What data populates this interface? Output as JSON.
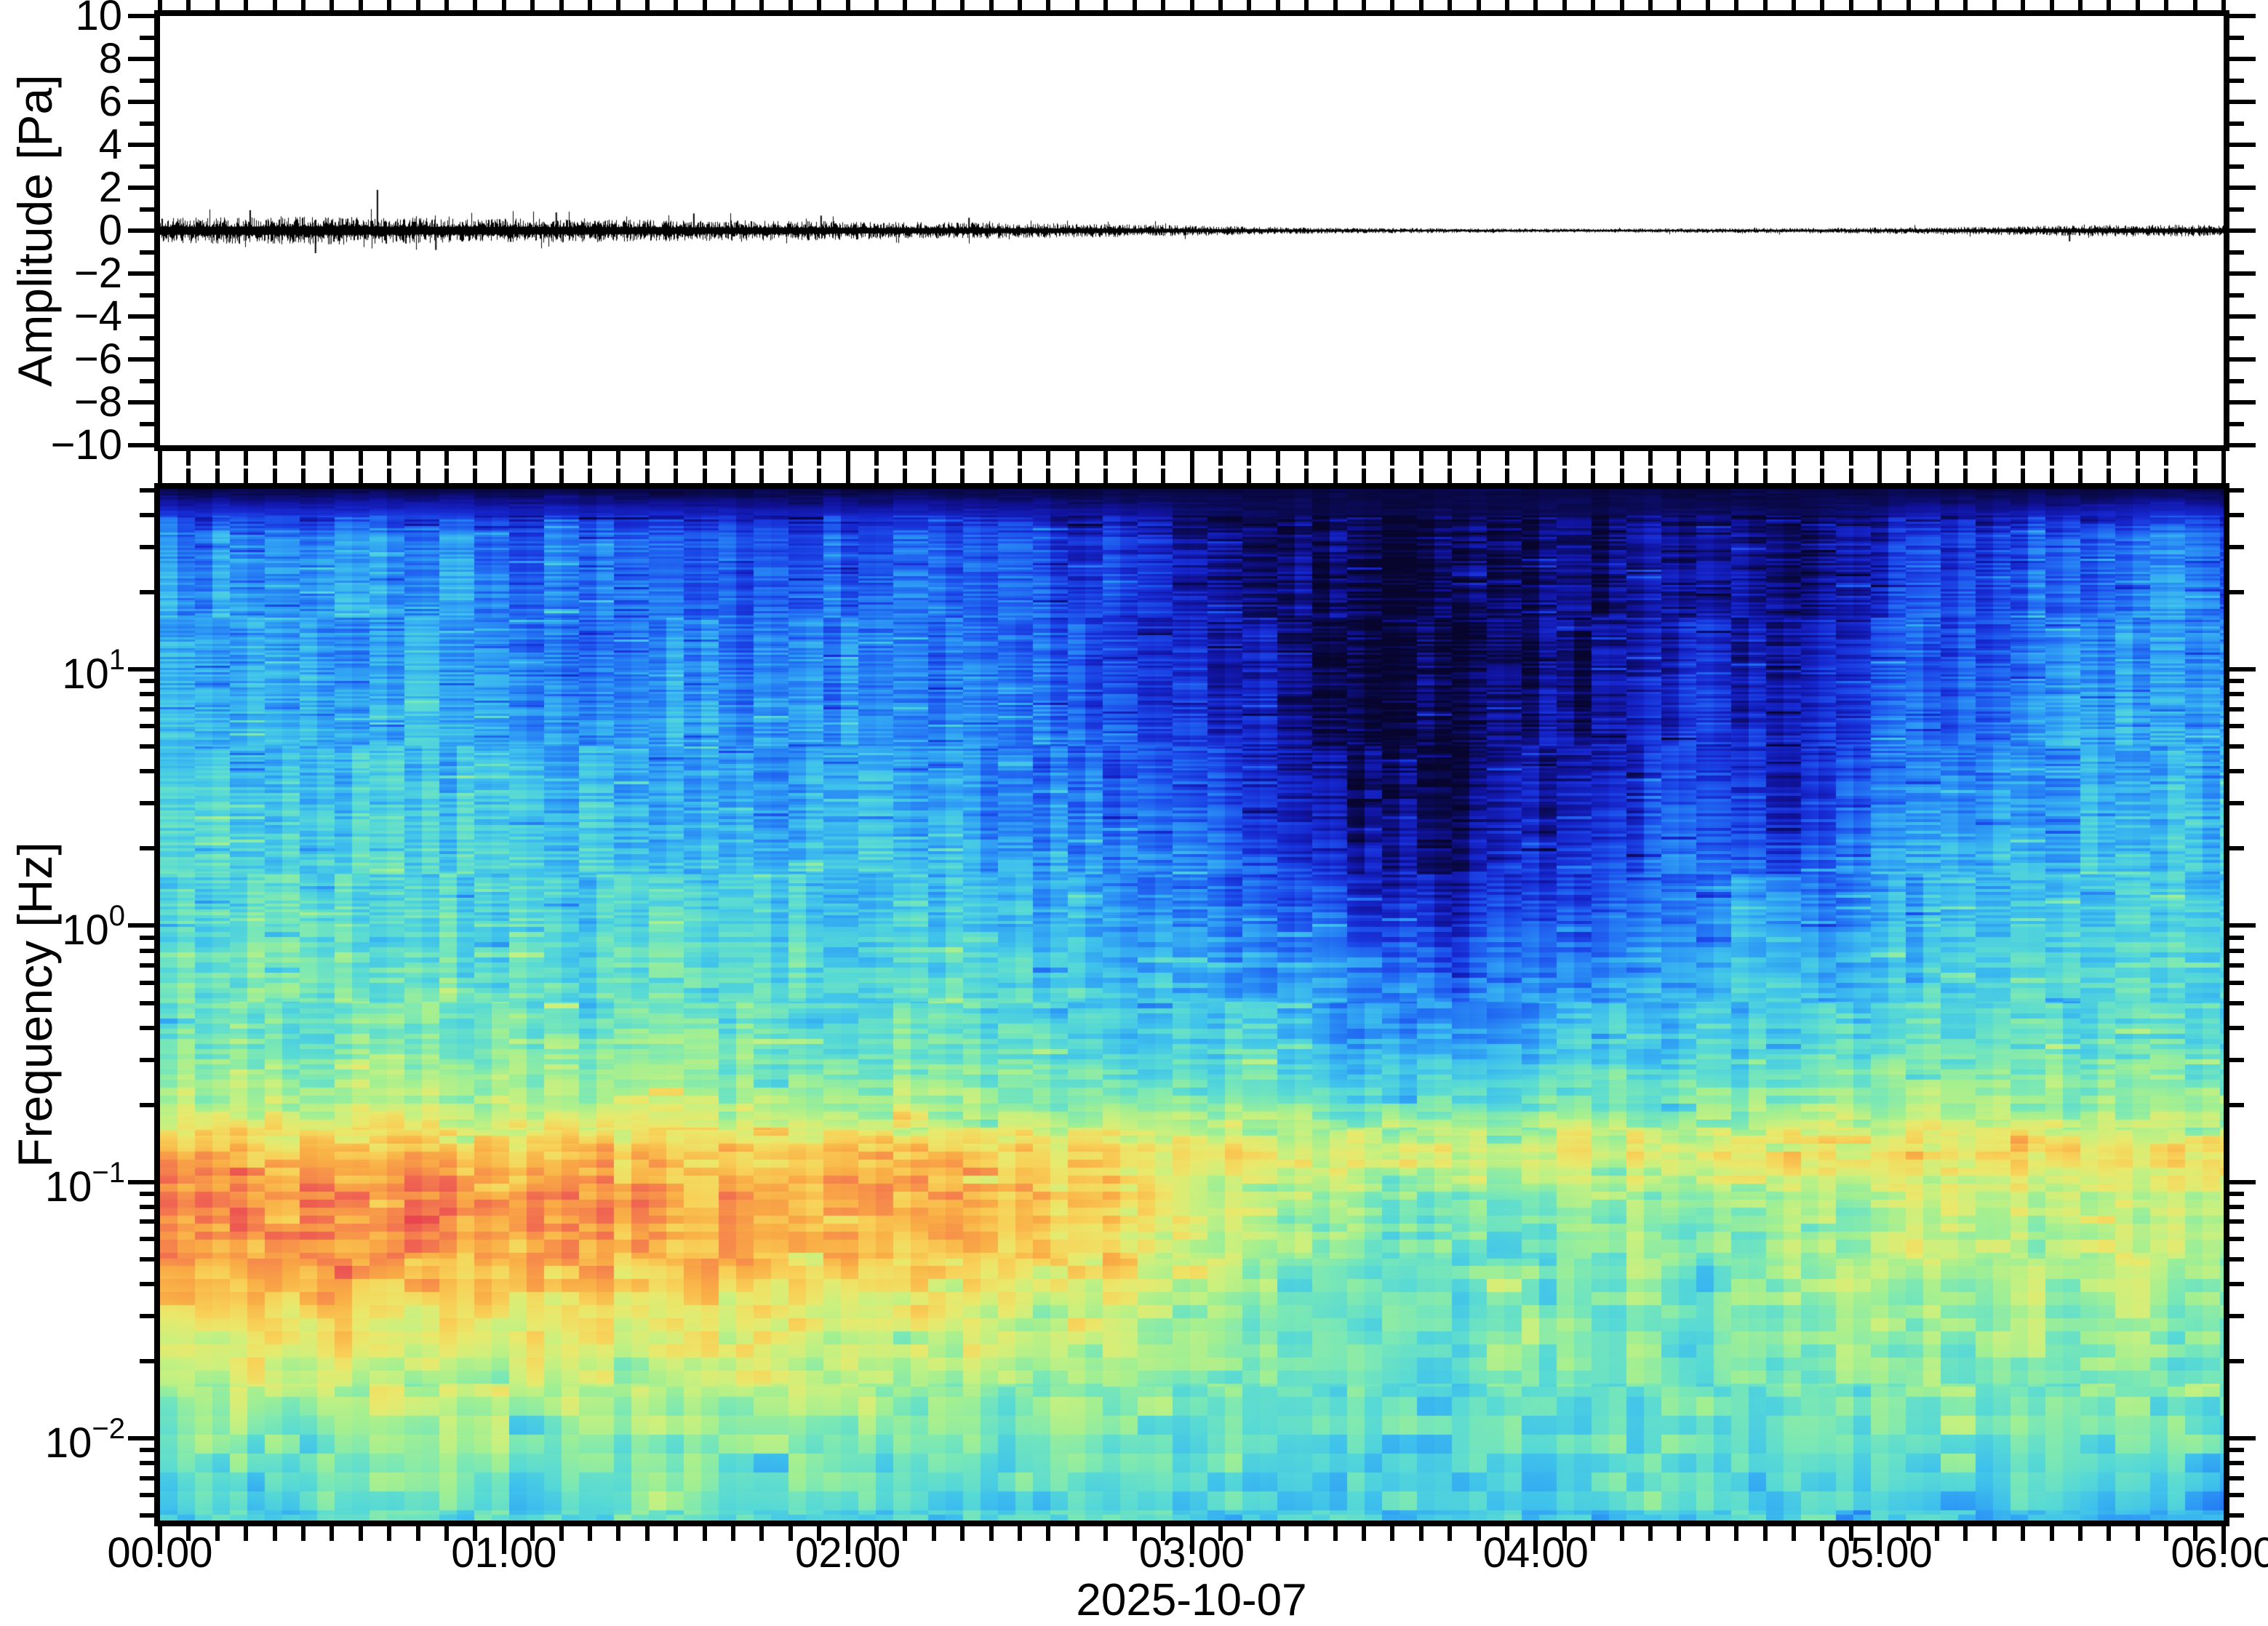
{
  "figure": {
    "date_label": "2025-10-07",
    "background": "#ffffff",
    "frame_color": "#000000",
    "trace_color": "#000000"
  },
  "waveform_panel": {
    "ylabel": "Amplitude [Pa]",
    "ylim": [
      -10,
      10
    ],
    "yticks": [
      {
        "v": 10,
        "label": "10"
      },
      {
        "v": 8,
        "label": "8"
      },
      {
        "v": 6,
        "label": "6"
      },
      {
        "v": 4,
        "label": "4"
      },
      {
        "v": 2,
        "label": "2"
      },
      {
        "v": 0,
        "label": "0"
      },
      {
        "v": -2,
        "label": "−2"
      },
      {
        "v": -4,
        "label": "−4"
      },
      {
        "v": -6,
        "label": "−6"
      },
      {
        "v": -8,
        "label": "−8"
      },
      {
        "v": -10,
        "label": "−10"
      }
    ]
  },
  "spectrogram_panel": {
    "ylabel": "Frequency [Hz]",
    "y_scale": "log",
    "log10_range": [
      -2.32,
      1.704
    ],
    "yticks": [
      {
        "logf": 1,
        "base": "10",
        "exp": "1"
      },
      {
        "logf": 0,
        "base": "10",
        "exp": "0"
      },
      {
        "logf": -1,
        "base": "10",
        "exp": "−1"
      },
      {
        "logf": -2,
        "base": "10",
        "exp": "−2"
      }
    ]
  },
  "time_axis": {
    "start": "00:00",
    "end": "06:00",
    "hours_span": 6,
    "minor_tick_minutes": 5,
    "labels": [
      {
        "hour": 0,
        "label": "00:00"
      },
      {
        "hour": 1,
        "label": "01:00"
      },
      {
        "hour": 2,
        "label": "02:00"
      },
      {
        "hour": 3,
        "label": "03:00"
      },
      {
        "hour": 4,
        "label": "04:00"
      },
      {
        "hour": 5,
        "label": "05:00"
      },
      {
        "hour": 6,
        "label": "06:00"
      }
    ]
  },
  "chart_data": [
    {
      "type": "line",
      "name": "infrasound-waveform",
      "ylabel": "Amplitude [Pa]",
      "xlabel": "2025-10-07",
      "ylim": [
        -10,
        10
      ],
      "x_hours": [
        0,
        0.25,
        0.5,
        0.75,
        1,
        1.25,
        1.5,
        1.75,
        2,
        2.25,
        2.5,
        2.75,
        3,
        3.25,
        3.5,
        3.75,
        4,
        4.25,
        4.5,
        4.75,
        5,
        5.25,
        5.5,
        5.75,
        6
      ],
      "envelope_pa": [
        0.5,
        0.52,
        0.55,
        0.5,
        0.48,
        0.45,
        0.42,
        0.4,
        0.36,
        0.33,
        0.3,
        0.26,
        0.2,
        0.14,
        0.11,
        0.09,
        0.08,
        0.08,
        0.09,
        0.1,
        0.12,
        0.15,
        0.2,
        0.24,
        0.22
      ],
      "spikes_pa": [
        {
          "t": 0.26,
          "a": 0.95
        },
        {
          "t": 0.45,
          "a": -1.05
        },
        {
          "t": 0.63,
          "a": 1.9
        },
        {
          "t": 0.8,
          "a": -0.9
        },
        {
          "t": 1.15,
          "a": 0.85
        },
        {
          "t": 1.55,
          "a": 0.8
        },
        {
          "t": 1.92,
          "a": 0.7
        },
        {
          "t": 2.35,
          "a": 0.6
        },
        {
          "t": 5.55,
          "a": -0.5
        }
      ]
    },
    {
      "type": "heatmap",
      "name": "spectrogram",
      "ylabel": "Frequency [Hz]",
      "y_scale": "log",
      "ylim_hz": [
        0.0048,
        50
      ],
      "xlim_hours": [
        0,
        6
      ],
      "x_hours": [
        0,
        0.25,
        0.5,
        0.75,
        1,
        1.25,
        1.5,
        1.75,
        2,
        2.25,
        2.5,
        2.75,
        3,
        3.25,
        3.5,
        3.75,
        4,
        4.25,
        4.5,
        4.75,
        5,
        5.25,
        5.5,
        5.75,
        6
      ],
      "log10_freq_rows": [
        1.7,
        1.52,
        1.34,
        1.1,
        0.85,
        0.6,
        0.35,
        0.1,
        -0.15,
        -0.45,
        -0.7,
        -0.88,
        -1.06,
        -1.3,
        -1.6,
        -1.95,
        -2.32
      ],
      "values_norm": [
        [
          0.03,
          0.03,
          0.03,
          0.03,
          0.03,
          0.03,
          0.03,
          0.03,
          0.03,
          0.03,
          0.03,
          0.03,
          0.03,
          0.03,
          0.03,
          0.03,
          0.03,
          0.03,
          0.03,
          0.03,
          0.03,
          0.03,
          0.03,
          0.03,
          0.03
        ],
        [
          0.3,
          0.32,
          0.3,
          0.33,
          0.28,
          0.25,
          0.27,
          0.24,
          0.26,
          0.24,
          0.22,
          0.18,
          0.12,
          0.09,
          0.05,
          0.04,
          0.06,
          0.07,
          0.12,
          0.08,
          0.16,
          0.2,
          0.24,
          0.28,
          0.26
        ],
        [
          0.32,
          0.34,
          0.32,
          0.35,
          0.3,
          0.27,
          0.29,
          0.26,
          0.28,
          0.26,
          0.24,
          0.2,
          0.14,
          0.1,
          0.04,
          0.04,
          0.06,
          0.08,
          0.14,
          0.09,
          0.18,
          0.22,
          0.26,
          0.3,
          0.28
        ],
        [
          0.35,
          0.37,
          0.34,
          0.37,
          0.32,
          0.3,
          0.31,
          0.28,
          0.3,
          0.28,
          0.26,
          0.22,
          0.16,
          0.11,
          0.04,
          0.04,
          0.07,
          0.09,
          0.16,
          0.1,
          0.2,
          0.25,
          0.28,
          0.33,
          0.3
        ],
        [
          0.38,
          0.4,
          0.37,
          0.39,
          0.35,
          0.33,
          0.34,
          0.31,
          0.32,
          0.3,
          0.28,
          0.24,
          0.18,
          0.12,
          0.05,
          0.05,
          0.08,
          0.1,
          0.18,
          0.12,
          0.22,
          0.28,
          0.31,
          0.36,
          0.33
        ],
        [
          0.41,
          0.42,
          0.4,
          0.41,
          0.38,
          0.36,
          0.37,
          0.34,
          0.35,
          0.33,
          0.31,
          0.27,
          0.22,
          0.15,
          0.06,
          0.06,
          0.1,
          0.13,
          0.22,
          0.15,
          0.26,
          0.31,
          0.34,
          0.38,
          0.36
        ],
        [
          0.44,
          0.45,
          0.43,
          0.44,
          0.41,
          0.4,
          0.4,
          0.38,
          0.38,
          0.36,
          0.34,
          0.31,
          0.27,
          0.2,
          0.09,
          0.08,
          0.14,
          0.18,
          0.27,
          0.2,
          0.31,
          0.35,
          0.38,
          0.41,
          0.39
        ],
        [
          0.47,
          0.48,
          0.46,
          0.47,
          0.45,
          0.44,
          0.44,
          0.42,
          0.42,
          0.4,
          0.39,
          0.36,
          0.33,
          0.27,
          0.15,
          0.13,
          0.22,
          0.26,
          0.34,
          0.29,
          0.37,
          0.4,
          0.42,
          0.44,
          0.42
        ],
        [
          0.5,
          0.51,
          0.49,
          0.5,
          0.48,
          0.47,
          0.47,
          0.46,
          0.46,
          0.44,
          0.43,
          0.41,
          0.39,
          0.34,
          0.26,
          0.24,
          0.32,
          0.34,
          0.4,
          0.36,
          0.42,
          0.44,
          0.45,
          0.47,
          0.45
        ],
        [
          0.53,
          0.54,
          0.52,
          0.53,
          0.52,
          0.51,
          0.51,
          0.5,
          0.5,
          0.49,
          0.48,
          0.46,
          0.44,
          0.41,
          0.35,
          0.33,
          0.4,
          0.41,
          0.44,
          0.42,
          0.46,
          0.48,
          0.48,
          0.5,
          0.48
        ],
        [
          0.62,
          0.63,
          0.62,
          0.62,
          0.61,
          0.6,
          0.6,
          0.59,
          0.6,
          0.58,
          0.57,
          0.56,
          0.55,
          0.52,
          0.48,
          0.47,
          0.52,
          0.53,
          0.54,
          0.55,
          0.56,
          0.57,
          0.56,
          0.58,
          0.56
        ],
        [
          0.8,
          0.81,
          0.8,
          0.79,
          0.78,
          0.78,
          0.77,
          0.77,
          0.78,
          0.76,
          0.75,
          0.74,
          0.72,
          0.7,
          0.68,
          0.67,
          0.7,
          0.71,
          0.7,
          0.72,
          0.73,
          0.74,
          0.72,
          0.74,
          0.72
        ],
        [
          0.88,
          0.9,
          0.89,
          0.88,
          0.87,
          0.86,
          0.85,
          0.84,
          0.82,
          0.8,
          0.78,
          0.74,
          0.68,
          0.62,
          0.55,
          0.52,
          0.55,
          0.58,
          0.56,
          0.6,
          0.62,
          0.64,
          0.62,
          0.64,
          0.62
        ],
        [
          0.84,
          0.86,
          0.85,
          0.84,
          0.83,
          0.82,
          0.81,
          0.8,
          0.79,
          0.77,
          0.74,
          0.7,
          0.64,
          0.58,
          0.52,
          0.5,
          0.52,
          0.55,
          0.54,
          0.58,
          0.62,
          0.63,
          0.6,
          0.62,
          0.58
        ],
        [
          0.7,
          0.72,
          0.71,
          0.7,
          0.7,
          0.69,
          0.68,
          0.67,
          0.66,
          0.64,
          0.62,
          0.6,
          0.57,
          0.53,
          0.5,
          0.48,
          0.5,
          0.52,
          0.5,
          0.54,
          0.56,
          0.58,
          0.55,
          0.56,
          0.54
        ],
        [
          0.56,
          0.58,
          0.57,
          0.56,
          0.57,
          0.58,
          0.57,
          0.56,
          0.56,
          0.55,
          0.54,
          0.53,
          0.52,
          0.5,
          0.49,
          0.47,
          0.49,
          0.5,
          0.48,
          0.51,
          0.52,
          0.53,
          0.5,
          0.51,
          0.5
        ],
        [
          0.44,
          0.4,
          0.45,
          0.47,
          0.44,
          0.46,
          0.48,
          0.45,
          0.46,
          0.44,
          0.45,
          0.43,
          0.44,
          0.42,
          0.43,
          0.44,
          0.42,
          0.45,
          0.43,
          0.44,
          0.42,
          0.4,
          0.43,
          0.38,
          0.36
        ]
      ],
      "colormap_stops": [
        [
          0.0,
          "#07052e"
        ],
        [
          0.05,
          "#0a0a55"
        ],
        [
          0.1,
          "#10129a"
        ],
        [
          0.16,
          "#1628cf"
        ],
        [
          0.22,
          "#1c4bea"
        ],
        [
          0.28,
          "#2374f3"
        ],
        [
          0.34,
          "#2f9ef4"
        ],
        [
          0.4,
          "#3fc2ec"
        ],
        [
          0.46,
          "#57d9d6"
        ],
        [
          0.52,
          "#78e7b8"
        ],
        [
          0.58,
          "#a2ef92"
        ],
        [
          0.64,
          "#c9f07f"
        ],
        [
          0.7,
          "#e9e96c"
        ],
        [
          0.76,
          "#f8d158"
        ],
        [
          0.82,
          "#f9ad45"
        ],
        [
          0.88,
          "#f68b4b"
        ],
        [
          0.94,
          "#ef6352"
        ],
        [
          1.0,
          "#e8454f"
        ]
      ],
      "legend": "none",
      "grid": "off"
    }
  ]
}
